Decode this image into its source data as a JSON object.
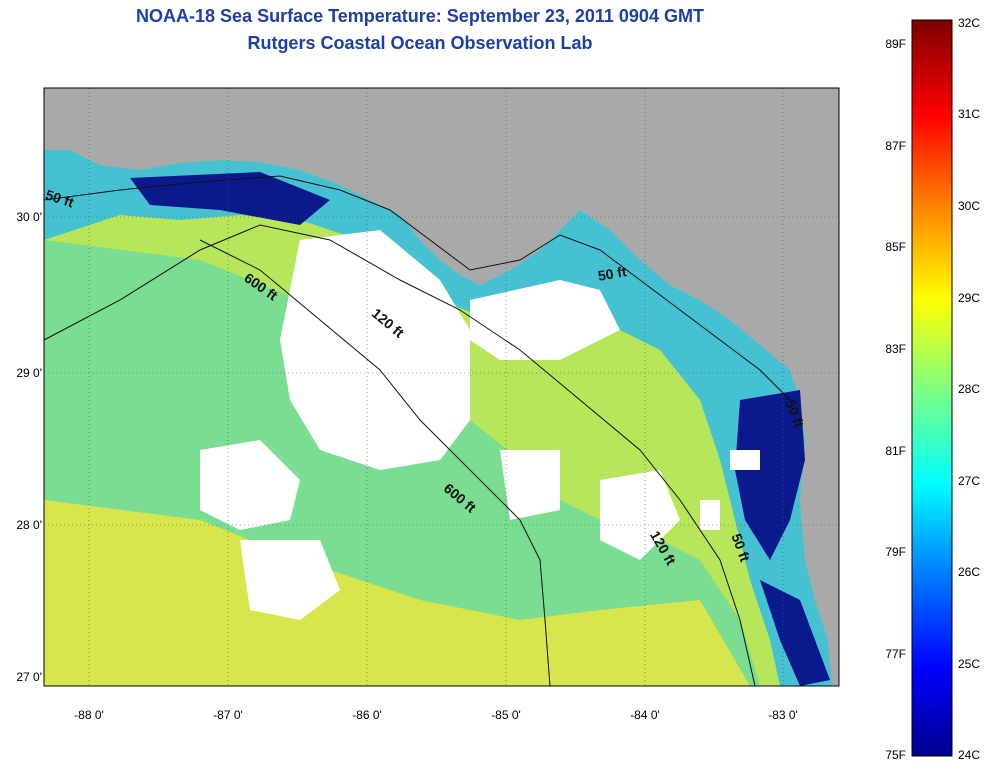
{
  "title_line1": "NOAA-18 Sea Surface Temperature:  September 23, 2011 0904 GMT",
  "title_line2": "Rutgers Coastal Ocean Observation Lab",
  "y_ticks": [
    "30 0'",
    "29 0'",
    "28 0'",
    "27 0'"
  ],
  "x_ticks": [
    "-88 0'",
    "-87 0'",
    "-86 0'",
    "-85 0'",
    "-84 0'",
    "-83 0'"
  ],
  "colorbar": {
    "fahrenheit": [
      "89F",
      "87F",
      "85F",
      "83F",
      "81F",
      "79F",
      "77F",
      "75F"
    ],
    "celsius": [
      "32C",
      "31C",
      "30C",
      "29C",
      "28C",
      "27C",
      "26C",
      "25C",
      "24C"
    ]
  },
  "contours": [
    "50 ft",
    "600 ft",
    "120 ft",
    "50 ft",
    "600 ft",
    "120 ft",
    "50 ft",
    "50 ft"
  ],
  "colors": {
    "land": "#a9a9a9",
    "cloud": "#ffffff",
    "title": "#1f3fa8",
    "warm": "#e8e840",
    "mid": "#78d870",
    "cool": "#28b8f0",
    "cold": "#0a1a8c"
  }
}
